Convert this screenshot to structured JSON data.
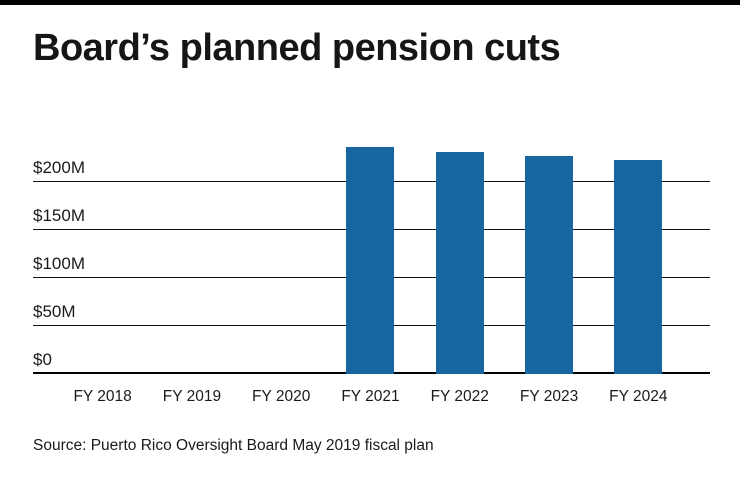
{
  "page": {
    "title": "Board’s planned pension cuts"
  },
  "source": {
    "text": "Source: Puerto Rico Oversight Board May 2019 fiscal plan"
  },
  "chart_data": {
    "type": "bar",
    "title": "Board’s planned pension cuts",
    "categories": [
      "FY 2018",
      "FY 2019",
      "FY 2020",
      "FY 2021",
      "FY 2022",
      "FY 2023",
      "FY 2024"
    ],
    "values": [
      0,
      0,
      0,
      236,
      231,
      227,
      223
    ],
    "unit": "millions of dollars",
    "xlabel": "",
    "ylabel": "",
    "ylim": [
      0,
      250
    ],
    "yticks": [
      {
        "label": "$0",
        "value": 0
      },
      {
        "label": "$50M",
        "value": 50
      },
      {
        "label": "$100M",
        "value": 100
      },
      {
        "label": "$150M",
        "value": 150
      },
      {
        "label": "$200M",
        "value": 200
      }
    ],
    "bar_color": "#1766a0",
    "grid": true,
    "legend": false
  }
}
